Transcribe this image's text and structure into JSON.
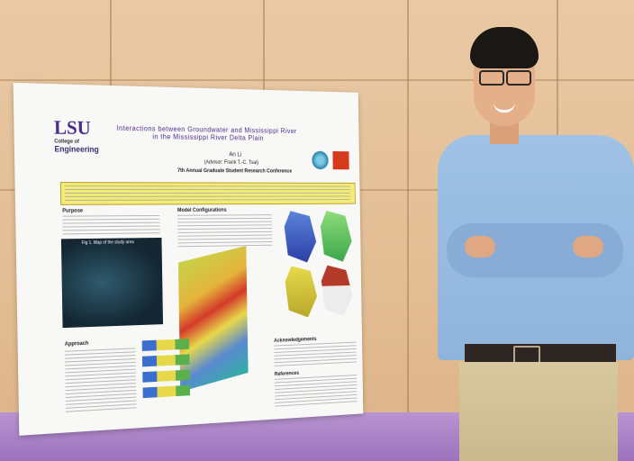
{
  "poster": {
    "logo_text": "LSU",
    "logo_sub": "College of",
    "logo_department": "Engineering",
    "title": "Interactions between Groundwater and Mississippi River in the Mississippi River Delta Plain",
    "author": "An Li",
    "advisor": "(Advisor: Frank T.-C. Tsai)",
    "conference": "7th Annual Graduate Student Research Conference",
    "sections": {
      "purpose": "Purpose",
      "model": "Model Configurations",
      "approach": "Approach",
      "acknowledgements": "Acknowledgements",
      "references": "References"
    },
    "figure_labels": {
      "study_area": "Fig 1. Map of the study area"
    }
  },
  "colors": {
    "lsu_purple": "#4a2a8a",
    "abstract_yellow": "#f3ec7a",
    "tablecloth": "#9d72be",
    "shirt_blue": "#8fb3db"
  }
}
